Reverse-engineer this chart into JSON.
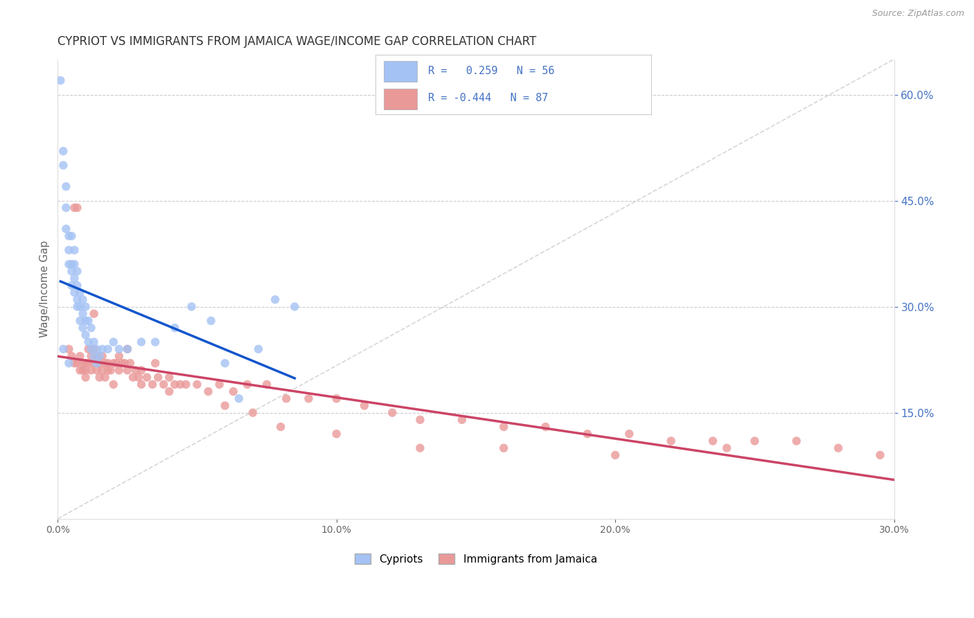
{
  "title": "CYPRIOT VS IMMIGRANTS FROM JAMAICA WAGE/INCOME GAP CORRELATION CHART",
  "source": "Source: ZipAtlas.com",
  "ylabel": "Wage/Income Gap",
  "legend_label1": "Cypriots",
  "legend_label2": "Immigrants from Jamaica",
  "R1": 0.259,
  "N1": 56,
  "R2": -0.444,
  "N2": 87,
  "color_blue": "#a4c2f4",
  "color_pink": "#ea9999",
  "color_blue_line": "#1155cc",
  "color_pink_line": "#cc4466",
  "color_diag": "#bbbbbb",
  "background_color": "#ffffff",
  "xmin": 0.0,
  "xmax": 0.3,
  "ymin": 0.0,
  "ymax": 0.65,
  "blue_x": [
    0.001,
    0.002,
    0.002,
    0.003,
    0.003,
    0.003,
    0.004,
    0.004,
    0.004,
    0.005,
    0.005,
    0.005,
    0.005,
    0.006,
    0.006,
    0.006,
    0.006,
    0.007,
    0.007,
    0.007,
    0.007,
    0.008,
    0.008,
    0.008,
    0.009,
    0.009,
    0.009,
    0.01,
    0.01,
    0.01,
    0.011,
    0.011,
    0.012,
    0.012,
    0.013,
    0.013,
    0.014,
    0.014,
    0.015,
    0.016,
    0.018,
    0.02,
    0.022,
    0.025,
    0.03,
    0.035,
    0.042,
    0.048,
    0.055,
    0.06,
    0.065,
    0.072,
    0.078,
    0.085,
    0.002,
    0.004
  ],
  "blue_y": [
    0.62,
    0.52,
    0.5,
    0.47,
    0.44,
    0.41,
    0.4,
    0.38,
    0.36,
    0.4,
    0.36,
    0.35,
    0.33,
    0.38,
    0.36,
    0.34,
    0.32,
    0.35,
    0.33,
    0.31,
    0.3,
    0.32,
    0.3,
    0.28,
    0.31,
    0.29,
    0.27,
    0.3,
    0.28,
    0.26,
    0.28,
    0.25,
    0.27,
    0.24,
    0.25,
    0.23,
    0.24,
    0.22,
    0.23,
    0.24,
    0.24,
    0.25,
    0.24,
    0.24,
    0.25,
    0.25,
    0.27,
    0.3,
    0.28,
    0.22,
    0.17,
    0.24,
    0.31,
    0.3,
    0.24,
    0.22
  ],
  "pink_x": [
    0.004,
    0.005,
    0.006,
    0.006,
    0.007,
    0.007,
    0.008,
    0.008,
    0.009,
    0.009,
    0.01,
    0.01,
    0.011,
    0.011,
    0.012,
    0.012,
    0.013,
    0.013,
    0.014,
    0.014,
    0.015,
    0.015,
    0.016,
    0.016,
    0.017,
    0.017,
    0.018,
    0.018,
    0.019,
    0.02,
    0.021,
    0.022,
    0.022,
    0.023,
    0.024,
    0.025,
    0.026,
    0.027,
    0.028,
    0.029,
    0.03,
    0.032,
    0.034,
    0.036,
    0.038,
    0.04,
    0.042,
    0.044,
    0.046,
    0.05,
    0.054,
    0.058,
    0.063,
    0.068,
    0.075,
    0.082,
    0.09,
    0.1,
    0.11,
    0.12,
    0.13,
    0.145,
    0.16,
    0.175,
    0.19,
    0.205,
    0.22,
    0.235,
    0.25,
    0.265,
    0.28,
    0.295,
    0.01,
    0.02,
    0.03,
    0.04,
    0.013,
    0.025,
    0.035,
    0.06,
    0.07,
    0.08,
    0.1,
    0.13,
    0.16,
    0.2,
    0.24
  ],
  "pink_y": [
    0.24,
    0.23,
    0.44,
    0.22,
    0.44,
    0.22,
    0.23,
    0.21,
    0.22,
    0.21,
    0.22,
    0.21,
    0.24,
    0.22,
    0.23,
    0.21,
    0.24,
    0.22,
    0.23,
    0.21,
    0.22,
    0.2,
    0.23,
    0.21,
    0.22,
    0.2,
    0.22,
    0.21,
    0.21,
    0.22,
    0.22,
    0.23,
    0.21,
    0.22,
    0.22,
    0.21,
    0.22,
    0.2,
    0.21,
    0.2,
    0.21,
    0.2,
    0.19,
    0.2,
    0.19,
    0.2,
    0.19,
    0.19,
    0.19,
    0.19,
    0.18,
    0.19,
    0.18,
    0.19,
    0.19,
    0.17,
    0.17,
    0.17,
    0.16,
    0.15,
    0.14,
    0.14,
    0.13,
    0.13,
    0.12,
    0.12,
    0.11,
    0.11,
    0.11,
    0.11,
    0.1,
    0.09,
    0.2,
    0.19,
    0.19,
    0.18,
    0.29,
    0.24,
    0.22,
    0.16,
    0.15,
    0.13,
    0.12,
    0.1,
    0.1,
    0.09,
    0.1
  ]
}
